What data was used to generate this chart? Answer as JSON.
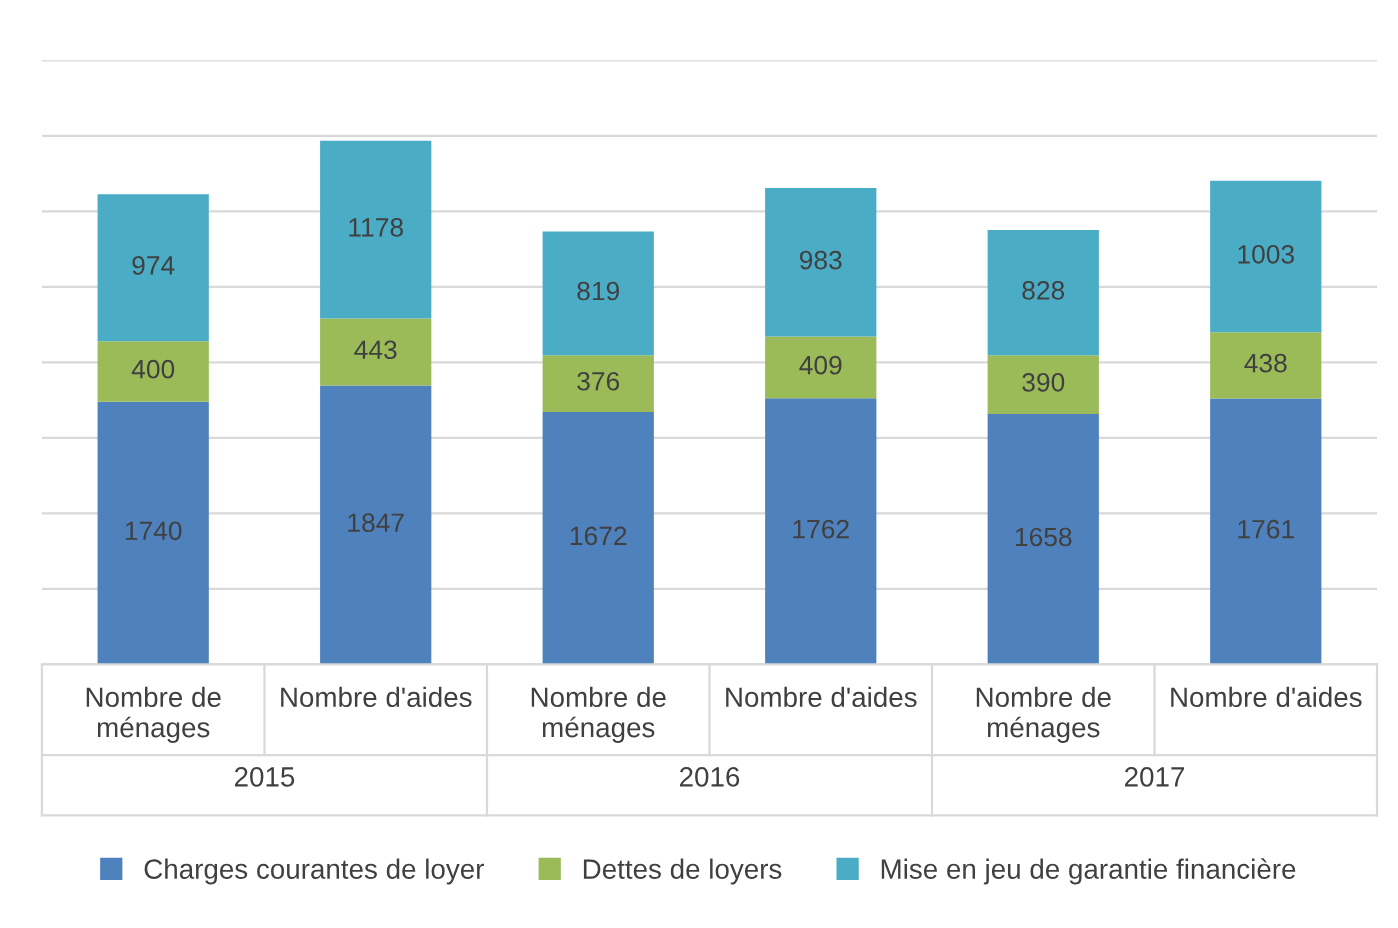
{
  "chart_data": {
    "type": "bar",
    "stacked": true,
    "categories": [
      "Nombre de\nménages",
      "Nombre d'aides",
      "Nombre de\nménages",
      "Nombre d'aides",
      "Nombre de\nménages",
      "Nombre d'aides"
    ],
    "series": [
      {
        "name": "Charges courantes de loyer",
        "color": "#4f81bd",
        "values": [
          1740,
          1847,
          1672,
          1762,
          1658,
          1761
        ]
      },
      {
        "name": "Dettes de loyers",
        "color": "#9bbb59",
        "values": [
          400,
          443,
          376,
          409,
          390,
          438
        ]
      },
      {
        "name": "Mise en jeu de garantie financière",
        "color": "#4bacc6",
        "values": [
          974,
          1178,
          819,
          983,
          828,
          1003
        ]
      }
    ],
    "annotations": [
      "2015",
      "2016",
      "2017"
    ],
    "ylim": [
      0,
      4000
    ],
    "yticks": [
      {
        "value": 0,
        "label": null
      },
      {
        "value": 500,
        "label": null
      },
      {
        "value": 1000,
        "label": null
      },
      {
        "value": 1500,
        "label": null
      },
      {
        "value": 2000,
        "label": null
      },
      {
        "value": 2500,
        "label": null
      },
      {
        "value": 3000,
        "label": null
      },
      {
        "value": 3500,
        "label": null
      },
      {
        "value": 4000,
        "label": null
      }
    ],
    "tick_labels": "x",
    "grid": "y",
    "data_labels": true,
    "legend": "bottom"
  }
}
